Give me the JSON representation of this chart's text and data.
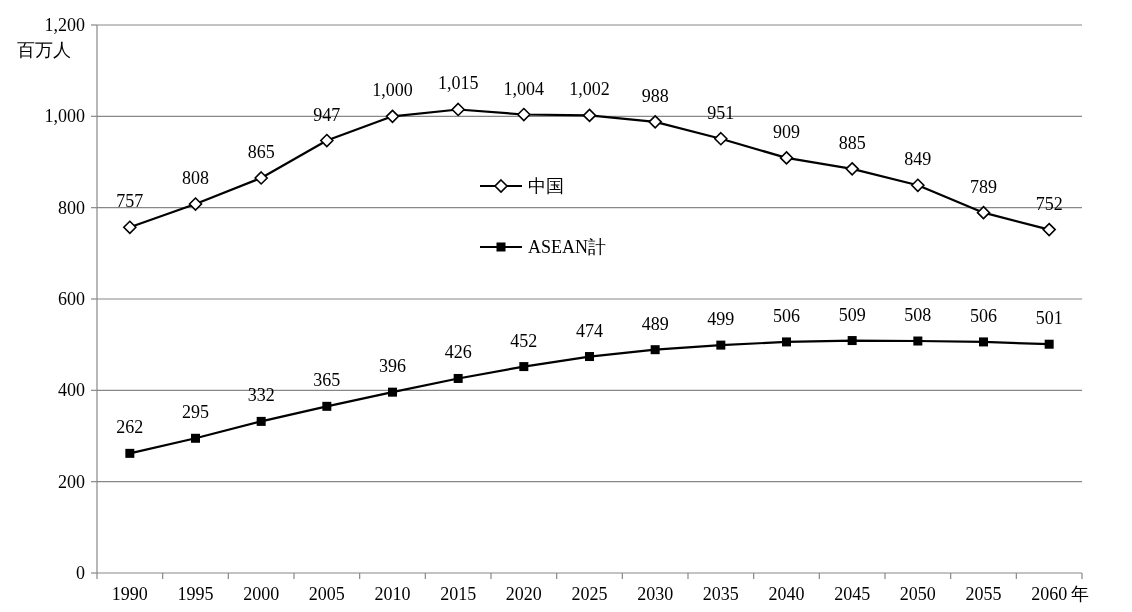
{
  "chart_data": {
    "type": "line",
    "categories": [
      "1990",
      "1995",
      "2000",
      "2005",
      "2010",
      "2015",
      "2020",
      "2025",
      "2030",
      "2035",
      "2040",
      "2045",
      "2050",
      "2055",
      "2060"
    ],
    "xlabel": "年",
    "ylabel": "百万人",
    "ylim": [
      0,
      1200
    ],
    "yticks": [
      0,
      200,
      400,
      600,
      800,
      {
        "value": 1000,
        "label": "1,000"
      },
      {
        "value": 1200,
        "label": "1,200"
      }
    ],
    "grid": "y",
    "legend": "center",
    "series": [
      {
        "name": "中国",
        "color": "#000000",
        "marker": "diamond",
        "values": [
          757,
          808,
          865,
          947,
          1000,
          1015,
          1004,
          1002,
          988,
          951,
          909,
          885,
          849,
          789,
          752
        ],
        "value_labels": [
          "757",
          "808",
          "865",
          "947",
          "1,000",
          "1,015",
          "1,004",
          "1,002",
          "988",
          "951",
          "909",
          "885",
          "849",
          "789",
          "752"
        ]
      },
      {
        "name": "ASEAN計",
        "color": "#000000",
        "marker": "square",
        "values": [
          262,
          295,
          332,
          365,
          396,
          426,
          452,
          474,
          489,
          499,
          506,
          509,
          508,
          506,
          501
        ],
        "value_labels": [
          "262",
          "295",
          "332",
          "365",
          "396",
          "426",
          "452",
          "474",
          "489",
          "499",
          "506",
          "509",
          "508",
          "506",
          "501"
        ]
      }
    ]
  }
}
